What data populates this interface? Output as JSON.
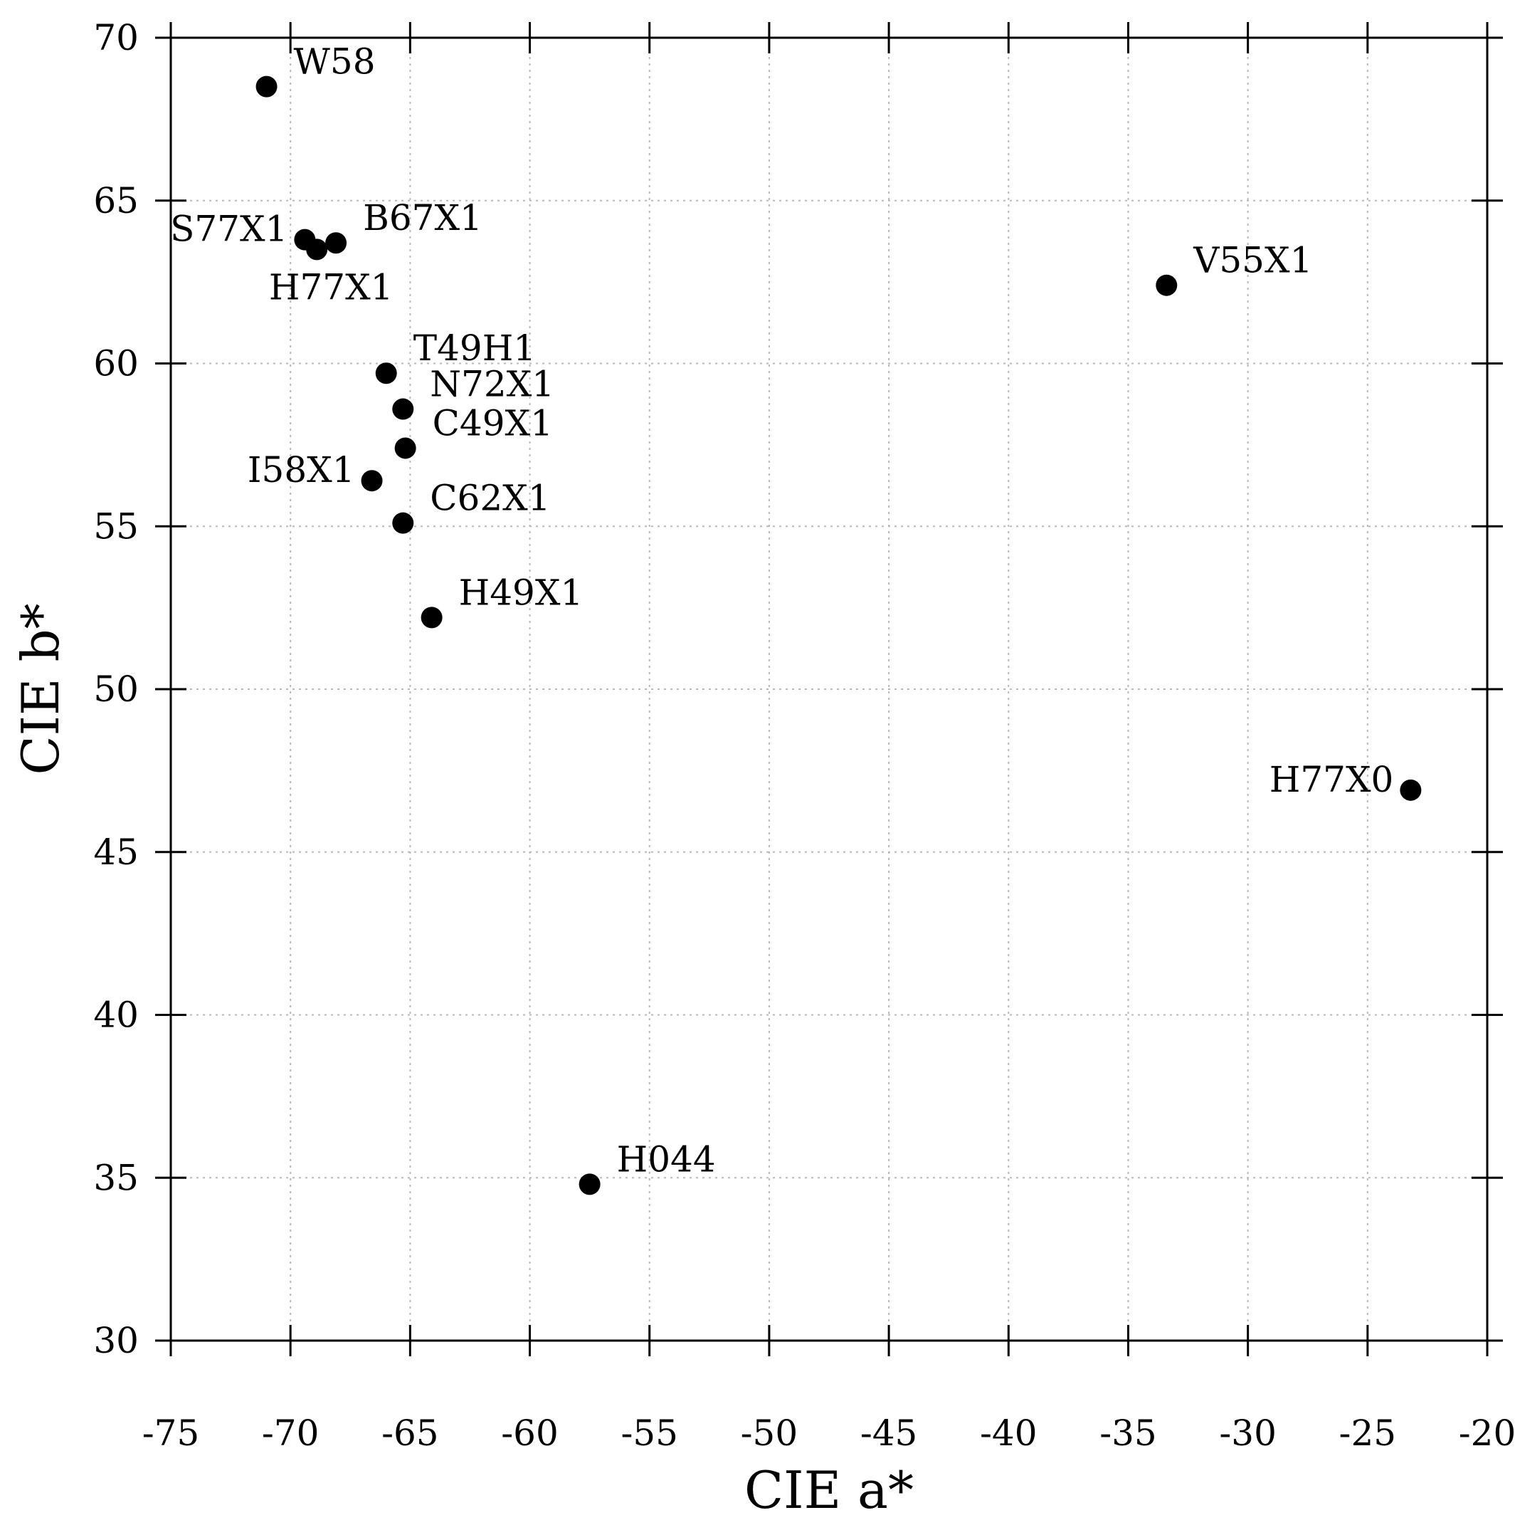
{
  "chart_data": {
    "type": "scatter",
    "title": "",
    "xlabel": "CIE a*",
    "ylabel": "CIE b*",
    "xlim": [
      -75,
      -20
    ],
    "ylim": [
      30,
      70
    ],
    "xticks": [
      -75,
      -70,
      -65,
      -60,
      -55,
      -50,
      -45,
      -40,
      -35,
      -30,
      -25,
      -20
    ],
    "yticks": [
      30,
      35,
      40,
      45,
      50,
      55,
      60,
      65,
      70
    ],
    "xtick_labels": [
      "-75",
      "-70",
      "-65",
      "-60",
      "-55",
      "-50",
      "-45",
      "-40",
      "-35",
      "-30",
      "-25",
      "-20"
    ],
    "ytick_labels": [
      "30",
      "35",
      "40",
      "45",
      "50",
      "55",
      "60",
      "65",
      "70"
    ],
    "grid": true,
    "marker_color": "#000000",
    "points": [
      {
        "label": "W58",
        "x": -71.0,
        "y": 68.5,
        "label_side": "right"
      },
      {
        "label": "S77X1",
        "x": -69.4,
        "y": 63.8,
        "label_side": "left"
      },
      {
        "label": "B67X1",
        "x": -68.1,
        "y": 63.7,
        "label_side": "right"
      },
      {
        "label": "H77X1",
        "x": -68.9,
        "y": 63.5,
        "label_side": "below"
      },
      {
        "label": "V55X1",
        "x": -33.4,
        "y": 62.4,
        "label_side": "right"
      },
      {
        "label": "T49H1",
        "x": -66.0,
        "y": 59.7,
        "label_side": "right"
      },
      {
        "label": "N72X1",
        "x": -65.3,
        "y": 58.6,
        "label_side": "right"
      },
      {
        "label": "C49X1",
        "x": -65.2,
        "y": 57.4,
        "label_side": "right"
      },
      {
        "label": "I58X1",
        "x": -66.6,
        "y": 56.4,
        "label_side": "left"
      },
      {
        "label": "C62X1",
        "x": -65.3,
        "y": 55.1,
        "label_side": "right"
      },
      {
        "label": "H49X1",
        "x": -64.1,
        "y": 52.2,
        "label_side": "right"
      },
      {
        "label": "H77X0",
        "x": -23.2,
        "y": 46.9,
        "label_side": "left"
      },
      {
        "label": "H044",
        "x": -57.5,
        "y": 34.8,
        "label_side": "right"
      }
    ]
  }
}
